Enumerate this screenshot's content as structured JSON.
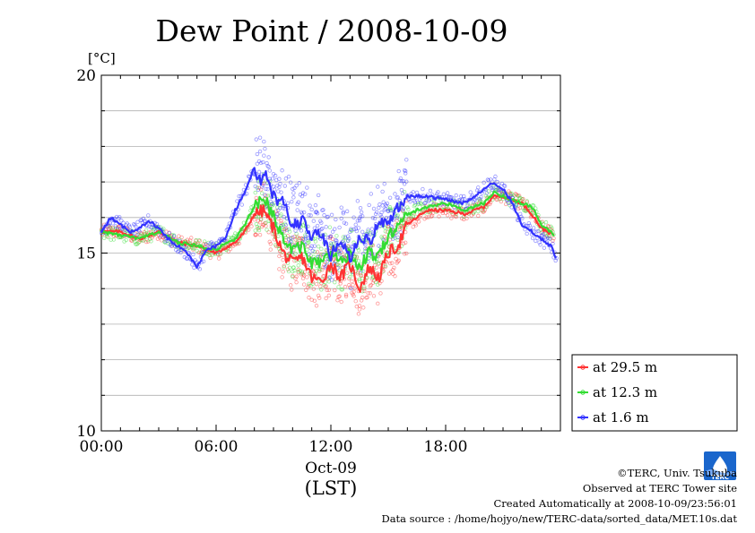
{
  "chart_data": {
    "type": "line",
    "title": "Dew Point / 2008-10-09",
    "ylabel": "[°C]",
    "xlabel": "(LST)",
    "date_label": "Oct-09",
    "ylim": [
      10,
      20
    ],
    "xlim": [
      "00:00",
      "24:00"
    ],
    "y_ticks": [
      "10",
      "15",
      "20"
    ],
    "x_ticks": [
      "00:00",
      "06:00",
      "12:00",
      "18:00"
    ],
    "grid": true,
    "legend_position": "right-bottom",
    "series": [
      {
        "name": "at 29.5 m",
        "color": "#ff3333",
        "x": [
          "00:00",
          "01:00",
          "02:00",
          "03:00",
          "04:00",
          "05:00",
          "06:00",
          "07:00",
          "07:30",
          "08:00",
          "08:30",
          "09:00",
          "09:30",
          "10:00",
          "10:30",
          "11:00",
          "11:30",
          "12:00",
          "12:30",
          "13:00",
          "13:30",
          "14:00",
          "14:30",
          "15:00",
          "15:30",
          "16:00",
          "17:00",
          "18:00",
          "19:00",
          "20:00",
          "20:30",
          "21:00",
          "22:00",
          "22:30",
          "23:00",
          "23:40"
        ],
        "values": [
          15.6,
          15.6,
          15.4,
          15.6,
          15.3,
          15.2,
          15.0,
          15.3,
          15.6,
          16.1,
          16.2,
          15.7,
          15.0,
          14.7,
          14.9,
          14.3,
          14.2,
          14.7,
          14.3,
          14.7,
          14.0,
          14.6,
          14.3,
          15.0,
          15.2,
          15.8,
          16.2,
          16.2,
          16.1,
          16.3,
          16.6,
          16.6,
          16.4,
          16.1,
          15.7,
          15.5
        ]
      },
      {
        "name": "at 12.3 m",
        "color": "#33dd33",
        "x": [
          "00:00",
          "01:00",
          "02:00",
          "03:00",
          "04:00",
          "05:00",
          "06:00",
          "07:00",
          "07:30",
          "08:00",
          "08:30",
          "09:00",
          "09:30",
          "10:00",
          "10:30",
          "11:00",
          "11:30",
          "12:00",
          "12:30",
          "13:00",
          "13:30",
          "14:00",
          "14:30",
          "15:00",
          "15:30",
          "16:00",
          "17:00",
          "18:00",
          "19:00",
          "20:00",
          "20:30",
          "21:00",
          "22:00",
          "22:30",
          "23:00",
          "23:40"
        ],
        "values": [
          15.6,
          15.5,
          15.4,
          15.6,
          15.3,
          15.2,
          15.1,
          15.4,
          15.8,
          16.3,
          16.5,
          16.1,
          15.4,
          15.1,
          15.2,
          14.7,
          14.7,
          15.0,
          14.7,
          15.0,
          14.6,
          15.0,
          14.9,
          15.5,
          15.7,
          16.1,
          16.3,
          16.4,
          16.2,
          16.4,
          16.7,
          16.6,
          16.4,
          16.3,
          15.8,
          15.5
        ]
      },
      {
        "name": "at 1.6 m",
        "color": "#3333ff",
        "x": [
          "00:00",
          "00:30",
          "01:00",
          "01:30",
          "02:00",
          "02:30",
          "03:00",
          "03:30",
          "04:00",
          "04:30",
          "05:00",
          "05:30",
          "06:00",
          "06:30",
          "07:00",
          "07:30",
          "08:00",
          "08:20",
          "08:40",
          "09:00",
          "09:30",
          "10:00",
          "10:30",
          "11:00",
          "11:30",
          "12:00",
          "12:30",
          "13:00",
          "13:30",
          "14:00",
          "14:30",
          "15:00",
          "15:30",
          "16:00",
          "17:00",
          "18:00",
          "19:00",
          "20:00",
          "20:30",
          "21:00",
          "21:30",
          "22:00",
          "22:30",
          "23:00",
          "23:30",
          "23:50"
        ],
        "values": [
          15.6,
          16.0,
          15.8,
          15.6,
          15.7,
          15.9,
          15.7,
          15.4,
          15.2,
          15.0,
          14.6,
          15.1,
          15.2,
          15.4,
          16.2,
          16.7,
          17.4,
          17.0,
          17.2,
          16.6,
          16.4,
          15.8,
          15.9,
          15.5,
          15.6,
          14.9,
          15.4,
          14.8,
          15.5,
          15.3,
          15.8,
          15.9,
          16.3,
          16.6,
          16.6,
          16.5,
          16.4,
          16.8,
          17.0,
          16.8,
          16.4,
          15.8,
          15.6,
          15.4,
          15.2,
          14.8
        ]
      }
    ],
    "legend_entries": [
      "at 29.5 m",
      "at 12.3 m",
      "at 1.6 m"
    ]
  },
  "footer": {
    "copyright": "©TERC, Univ. Tsukuba",
    "observed": "Observed at TERC Tower site",
    "created": "Created Automatically at 2008-10-09/23:56:01",
    "source": "Data source : /home/hojyo/new/TERC-data/sorted_data/MET.10s.dat"
  },
  "logo": {
    "text": "TERC",
    "color": "#1a66cc"
  }
}
